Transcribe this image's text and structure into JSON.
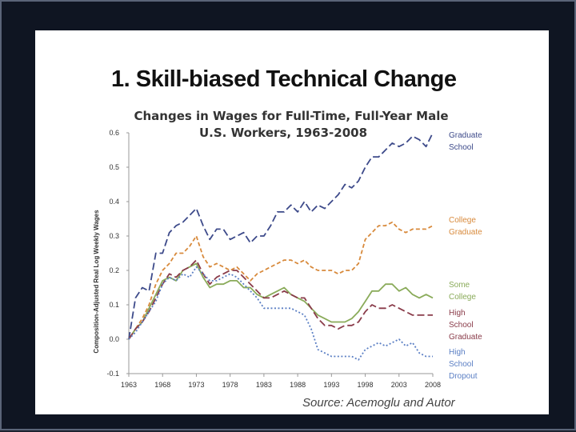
{
  "slide": {
    "title": "1. Skill-biased Technical Change",
    "source": "Source: Acemoglu and Autor"
  },
  "chart_data": {
    "type": "line",
    "title_lines": [
      "Changes in Wages for Full-Time, Full-Year Male",
      "U.S. Workers, 1963-2008"
    ],
    "ylabel": "Composition-Adjusted Real Log Weekly Wages",
    "xlabel": "",
    "ylim": [
      -0.1,
      0.6
    ],
    "yticks": [
      "-0.1",
      "0.0",
      "0.1",
      "0.2",
      "0.3",
      "0.4",
      "0.5",
      "0.6"
    ],
    "xlim": [
      1963,
      2008
    ],
    "xticks": [
      "1963",
      "1968",
      "1973",
      "1978",
      "1983",
      "1988",
      "1993",
      "1998",
      "2003",
      "2008"
    ],
    "x": [
      1963,
      1964,
      1965,
      1966,
      1967,
      1968,
      1969,
      1970,
      1971,
      1972,
      1973,
      1974,
      1975,
      1976,
      1977,
      1978,
      1979,
      1980,
      1981,
      1982,
      1983,
      1984,
      1985,
      1986,
      1987,
      1988,
      1989,
      1990,
      1991,
      1992,
      1993,
      1994,
      1995,
      1996,
      1997,
      1998,
      1999,
      2000,
      2001,
      2002,
      2003,
      2004,
      2005,
      2006,
      2007,
      2008
    ],
    "grid": false,
    "series": [
      {
        "name": "Graduate School",
        "label_lines": [
          "Graduate",
          "School"
        ],
        "color": "#3d4a8a",
        "dash": "dash",
        "values": [
          0.0,
          0.12,
          0.15,
          0.14,
          0.25,
          0.25,
          0.31,
          0.33,
          0.34,
          0.36,
          0.38,
          0.33,
          0.29,
          0.32,
          0.32,
          0.29,
          0.3,
          0.31,
          0.28,
          0.3,
          0.3,
          0.33,
          0.37,
          0.37,
          0.39,
          0.37,
          0.4,
          0.37,
          0.39,
          0.38,
          0.4,
          0.42,
          0.45,
          0.44,
          0.46,
          0.5,
          0.53,
          0.53,
          0.55,
          0.57,
          0.56,
          0.57,
          0.59,
          0.58,
          0.56,
          0.6
        ]
      },
      {
        "name": "College Graduate",
        "label_lines": [
          "College",
          "Graduate"
        ],
        "color": "#d88a3c",
        "dash": "short",
        "values": [
          0.0,
          0.03,
          0.06,
          0.1,
          0.16,
          0.2,
          0.22,
          0.25,
          0.25,
          0.27,
          0.3,
          0.24,
          0.21,
          0.22,
          0.21,
          0.2,
          0.21,
          0.19,
          0.17,
          0.19,
          0.2,
          0.21,
          0.22,
          0.23,
          0.23,
          0.22,
          0.23,
          0.21,
          0.2,
          0.2,
          0.2,
          0.19,
          0.2,
          0.2,
          0.22,
          0.29,
          0.31,
          0.33,
          0.33,
          0.34,
          0.32,
          0.31,
          0.32,
          0.32,
          0.32,
          0.33
        ]
      },
      {
        "name": "Some College",
        "label_lines": [
          "Some",
          "College"
        ],
        "color": "#8aab5a",
        "dash": "solid",
        "values": [
          0.0,
          0.03,
          0.05,
          0.09,
          0.13,
          0.17,
          0.18,
          0.17,
          0.2,
          0.21,
          0.22,
          0.18,
          0.15,
          0.16,
          0.16,
          0.17,
          0.17,
          0.15,
          0.15,
          0.13,
          0.12,
          0.13,
          0.14,
          0.15,
          0.13,
          0.12,
          0.11,
          0.09,
          0.07,
          0.06,
          0.05,
          0.05,
          0.05,
          0.06,
          0.08,
          0.11,
          0.14,
          0.14,
          0.16,
          0.16,
          0.14,
          0.15,
          0.13,
          0.12,
          0.13,
          0.12
        ]
      },
      {
        "name": "High School Graduate",
        "label_lines": [
          "High",
          "School",
          "Graduate"
        ],
        "color": "#8a3c4a",
        "dash": "dash",
        "values": [
          0.0,
          0.03,
          0.05,
          0.08,
          0.12,
          0.16,
          0.19,
          0.18,
          0.2,
          0.21,
          0.23,
          0.19,
          0.16,
          0.18,
          0.19,
          0.2,
          0.2,
          0.18,
          0.16,
          0.14,
          0.12,
          0.12,
          0.13,
          0.14,
          0.13,
          0.12,
          0.12,
          0.09,
          0.06,
          0.04,
          0.04,
          0.03,
          0.04,
          0.04,
          0.05,
          0.08,
          0.1,
          0.09,
          0.09,
          0.1,
          0.09,
          0.08,
          0.07,
          0.07,
          0.07,
          0.07
        ]
      },
      {
        "name": "High School Dropout",
        "label_lines": [
          "High",
          "School",
          "Dropout"
        ],
        "color": "#5b7fc4",
        "dash": "dot",
        "values": [
          0.0,
          0.02,
          0.05,
          0.08,
          0.11,
          0.16,
          0.18,
          0.17,
          0.19,
          0.18,
          0.21,
          0.19,
          0.17,
          0.17,
          0.18,
          0.19,
          0.18,
          0.16,
          0.14,
          0.12,
          0.09,
          0.09,
          0.09,
          0.09,
          0.09,
          0.08,
          0.07,
          0.03,
          -0.03,
          -0.04,
          -0.05,
          -0.05,
          -0.05,
          -0.05,
          -0.06,
          -0.03,
          -0.02,
          -0.01,
          -0.02,
          -0.01,
          0.0,
          -0.02,
          -0.01,
          -0.04,
          -0.05,
          -0.05
        ]
      }
    ]
  }
}
